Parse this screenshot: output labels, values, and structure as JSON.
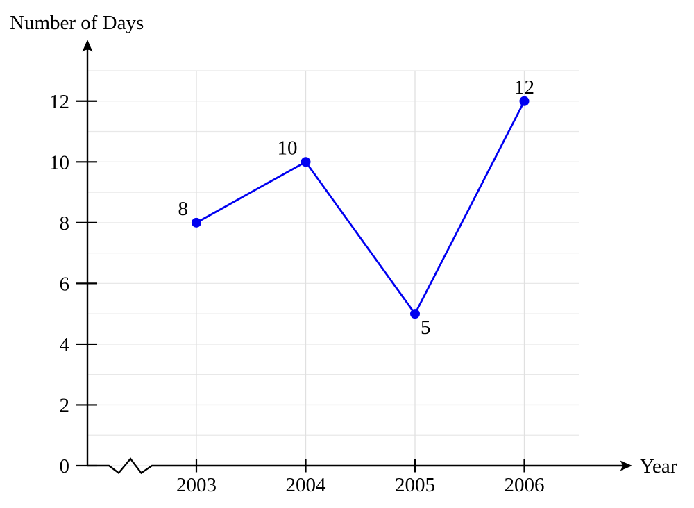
{
  "chart_data": {
    "type": "line",
    "ylabel": "Number of Days",
    "xlabel": "Year",
    "x": [
      2003,
      2004,
      2005,
      2006
    ],
    "x_tick_labels": [
      "2003",
      "2004",
      "2005",
      "2006"
    ],
    "values": [
      8,
      10,
      5,
      12
    ],
    "series": [
      {
        "name": "Number of Days",
        "values": [
          8,
          10,
          5,
          12
        ]
      }
    ],
    "point_labels": [
      "8",
      "10",
      "5",
      "12"
    ],
    "point_label_positions": [
      "above-left",
      "above-left",
      "below-right",
      "above"
    ],
    "y_ticks": [
      0,
      2,
      4,
      6,
      8,
      10,
      12
    ],
    "y_tick_labels": [
      "0",
      "2",
      "4",
      "6",
      "8",
      "10",
      "12"
    ],
    "ylim": [
      0,
      13
    ],
    "grid": {
      "horizontal_step": 1,
      "horizontal_lines_to": 13,
      "vertical_at_each_x": true
    },
    "axis_break_on_x": true,
    "marker": "filled-circle",
    "legend": "none",
    "colors": {
      "line": "#0000f0",
      "marker": "#0000f0",
      "axis": "#000000",
      "text": "#000000",
      "grid_horizontal": "#e8e8e8",
      "grid_vertical": "#e0e0e0"
    }
  }
}
